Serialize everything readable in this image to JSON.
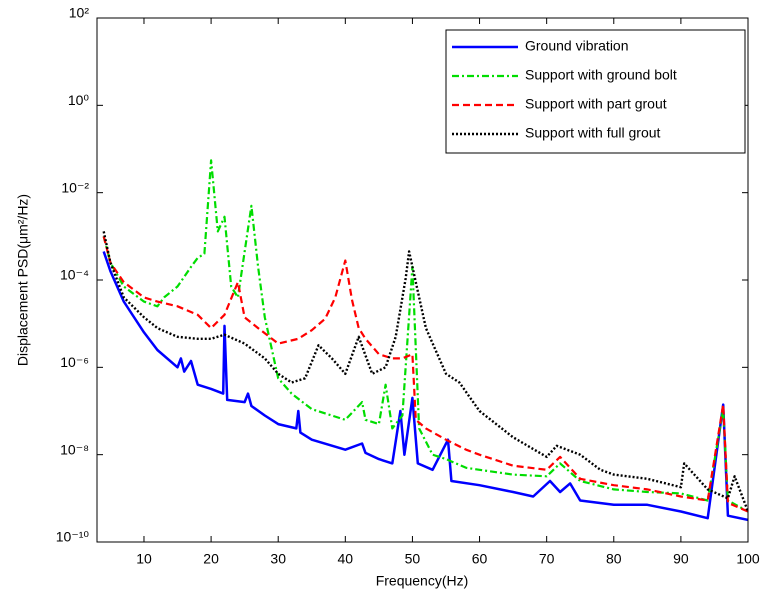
{
  "chart_data": {
    "type": "line",
    "xlabel": "Frequency(Hz)",
    "ylabel": "Displacement PSD(μm²/Hz)",
    "xlim": [
      3,
      100
    ],
    "xticks": [
      10,
      20,
      30,
      40,
      50,
      60,
      70,
      80,
      90,
      100
    ],
    "ylim": [
      1e-10,
      100
    ],
    "yscale": "log",
    "yticks": [
      {
        "value": 1e-10,
        "label": "10⁻¹⁰"
      },
      {
        "value": 1e-08,
        "label": "10⁻⁸"
      },
      {
        "value": 1e-06,
        "label": "10⁻⁶"
      },
      {
        "value": 0.0001,
        "label": "10⁻⁴"
      },
      {
        "value": 0.01,
        "label": "10⁻²"
      },
      {
        "value": 1,
        "label": "10⁰"
      },
      {
        "value": 100,
        "label": "10²"
      }
    ],
    "legend": "upper right",
    "series": [
      {
        "name": "Ground vibration",
        "color": "#0000ff",
        "linestyle": "solid",
        "x": [
          4,
          5,
          7,
          10,
          12,
          15,
          15.5,
          16,
          17,
          18,
          20,
          21.8,
          22,
          22.4,
          25,
          25.5,
          26,
          28,
          30,
          32.7,
          33,
          33.3,
          35,
          40,
          42.5,
          43,
          45,
          47,
          48.2,
          48.8,
          50,
          50.8,
          53,
          55.3,
          55.8,
          60,
          65,
          68,
          70.5,
          72,
          73.5,
          75,
          80,
          85,
          90,
          94,
          96.3,
          97,
          100
        ],
        "values": [
          0.00045,
          0.00016,
          3.2e-05,
          6.3e-06,
          2.5e-06,
          1e-06,
          1.6e-06,
          8e-07,
          1.4e-06,
          4e-07,
          3.2e-07,
          2.5e-07,
          8.9e-06,
          1.8e-07,
          1.6e-07,
          2.5e-07,
          1.3e-07,
          7.9e-08,
          5e-08,
          4e-08,
          1e-07,
          3.2e-08,
          2.2e-08,
          1.3e-08,
          1.8e-08,
          1.1e-08,
          7.9e-09,
          6.3e-09,
          1e-07,
          1e-08,
          2e-07,
          6.3e-09,
          4.5e-09,
          2.2e-08,
          2.5e-09,
          2e-09,
          1.4e-09,
          1.1e-09,
          2.5e-09,
          1.4e-09,
          2.2e-09,
          8.9e-10,
          7.1e-10,
          7.1e-10,
          5e-10,
          3.5e-10,
          1.4e-07,
          4e-10,
          3.2e-10
        ]
      },
      {
        "name": "Support with ground bolt",
        "color": "#00dd00",
        "linestyle": "dashdot",
        "x": [
          4,
          5,
          7,
          10,
          12,
          13,
          15,
          17,
          18,
          19,
          20,
          21,
          22,
          23,
          24,
          26,
          27,
          28,
          30,
          32,
          35,
          40,
          42.5,
          43,
          45,
          46,
          47,
          48.5,
          50,
          51,
          53,
          55,
          58,
          60,
          65,
          70,
          72,
          75,
          80,
          85,
          90,
          94,
          96.3,
          97,
          100
        ],
        "values": [
          0.001,
          0.00025,
          7.1e-05,
          3.2e-05,
          2.5e-05,
          4e-05,
          7.1e-05,
          0.0002,
          0.00032,
          0.0004,
          0.055,
          0.0013,
          0.0028,
          7.1e-05,
          4e-05,
          0.005,
          0.0002,
          1.4e-05,
          5.6e-07,
          2.5e-07,
          1.1e-07,
          6.3e-08,
          1.6e-07,
          6.3e-08,
          5e-08,
          4e-07,
          4e-08,
          7.9e-08,
          0.0002,
          4e-08,
          1e-08,
          7.9e-09,
          5e-09,
          4.5e-09,
          3.5e-09,
          3.2e-09,
          6.3e-09,
          2.5e-09,
          1.6e-09,
          1.4e-09,
          1.3e-09,
          8.9e-10,
          1.1e-07,
          8.9e-10,
          5e-10
        ]
      },
      {
        "name": "Support with part grout",
        "color": "#ff0000",
        "linestyle": "dashed",
        "x": [
          4,
          5,
          7,
          10,
          12,
          15,
          18,
          20,
          22,
          24,
          25,
          27,
          30,
          33,
          35,
          37,
          38.5,
          40,
          41,
          42,
          43,
          45,
          47,
          48.5,
          50,
          50.5,
          52,
          55,
          58,
          60,
          65,
          70,
          72,
          75,
          80,
          85,
          90,
          94,
          96.3,
          97,
          100
        ],
        "values": [
          0.001,
          0.00025,
          8.9e-05,
          4e-05,
          3.2e-05,
          2.5e-05,
          1.6e-05,
          7.9e-06,
          1.6e-05,
          8.9e-05,
          1.4e-05,
          7.9e-06,
          3.5e-06,
          4.5e-06,
          7.1e-06,
          1.3e-05,
          4e-05,
          0.00028,
          3.5e-05,
          7.9e-06,
          4.5e-06,
          2e-06,
          1.6e-06,
          1.6e-06,
          2e-06,
          6.3e-08,
          4e-08,
          2.2e-08,
          1.3e-08,
          1e-08,
          5.6e-09,
          4.5e-09,
          8.9e-09,
          2.8e-09,
          2e-09,
          1.6e-09,
          1.1e-09,
          8.9e-10,
          1.4e-07,
          7.9e-10,
          5e-10
        ]
      },
      {
        "name": "Support with full grout",
        "color": "#000000",
        "linestyle": "dotted",
        "x": [
          4,
          5,
          7,
          10,
          12,
          15,
          18,
          20,
          22,
          25,
          28,
          30,
          32,
          34,
          36,
          38,
          40,
          42,
          44,
          46,
          47.5,
          49,
          49.5,
          50.5,
          52,
          55,
          57,
          60,
          65,
          70,
          71.5,
          75,
          78,
          80,
          85,
          90,
          90.5,
          94,
          97,
          98,
          100
        ],
        "values": [
          0.0013,
          0.00025,
          4e-05,
          1.4e-05,
          7.9e-06,
          5e-06,
          4.5e-06,
          4.5e-06,
          5.6e-06,
          3.5e-06,
          1.6e-06,
          7.1e-07,
          4.5e-07,
          5.6e-07,
          3.2e-06,
          1.6e-06,
          7.1e-07,
          5e-06,
          7.1e-07,
          1e-06,
          5e-06,
          0.00011,
          0.00045,
          8.9e-05,
          7.9e-06,
          7.1e-07,
          4.5e-07,
          1e-07,
          2.5e-08,
          8.9e-09,
          1.6e-08,
          1e-08,
          4.5e-09,
          3.5e-09,
          2.8e-09,
          1.8e-09,
          6.3e-09,
          1.6e-09,
          1e-09,
          3.2e-09,
          5e-10
        ]
      }
    ]
  }
}
